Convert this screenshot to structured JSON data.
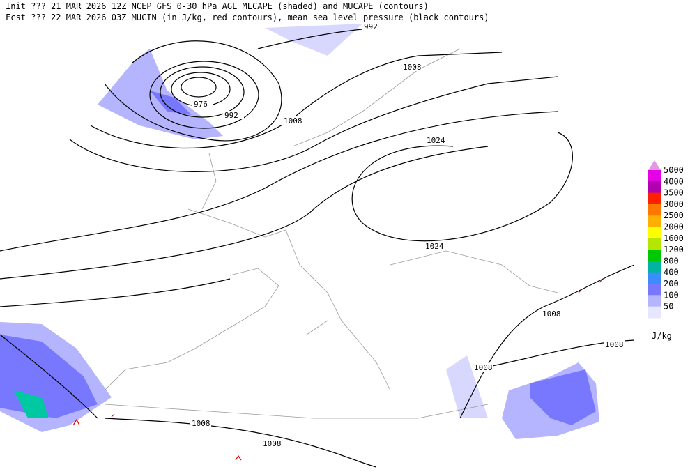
{
  "header": {
    "init": "Init  ??? 21 MAR 2026 12Z  NCEP GFS 0-30 hPa AGL MLCAPE (shaded) and MUCAPE (contours)",
    "fcst": "Fcst ??? 22 MAR 2026 03Z  MUCIN (in J/kg, red contours), mean sea level pressure (black contours)"
  },
  "contour_labels": [
    "992",
    "1008",
    "976",
    "992",
    "1008",
    "1024",
    "1024",
    "1008",
    "1008",
    "1008",
    "1008",
    "1008"
  ],
  "legend": {
    "unit": "J/kg",
    "levels": [
      "5000",
      "4000",
      "3500",
      "3000",
      "2500",
      "2000",
      "1600",
      "1200",
      "800",
      "400",
      "200",
      "100",
      "50"
    ],
    "colors": [
      "#e600e6",
      "#b000b0",
      "#ff2000",
      "#ff7800",
      "#ffb000",
      "#ffff00",
      "#b4e600",
      "#00c800",
      "#00b4a0",
      "#3c8cff",
      "#7878ff",
      "#b4b4ff",
      "#e6e6ff"
    ],
    "top_color": "#e696e6"
  }
}
